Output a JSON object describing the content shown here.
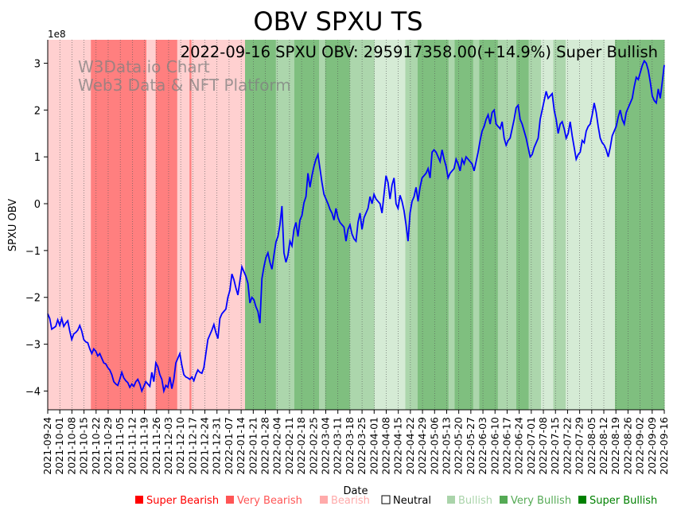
{
  "chart_data": {
    "type": "line",
    "title": "OBV SPXU TS",
    "annotation": "2022-09-16 SPXU OBV: 295917358.00(+14.9%) Super Bullish",
    "watermark_line1": "W3Data.io Chart",
    "watermark_line2": "Web3 Data & NFT Platform",
    "xlabel": "Date",
    "ylabel": "SPXU OBV",
    "y_multiplier": "1e8",
    "ylim": [
      -4.4,
      3.5
    ],
    "yticks": [
      -4,
      -3,
      -2,
      -1,
      0,
      1,
      2,
      3
    ],
    "xticks": [
      "2021-09-24",
      "2021-10-01",
      "2021-10-08",
      "2021-10-15",
      "2021-10-22",
      "2021-10-29",
      "2021-11-05",
      "2021-11-12",
      "2021-11-19",
      "2021-11-26",
      "2021-12-03",
      "2021-12-10",
      "2021-12-17",
      "2021-12-24",
      "2021-12-31",
      "2022-01-07",
      "2022-01-14",
      "2022-01-21",
      "2022-01-28",
      "2022-02-04",
      "2022-02-11",
      "2022-02-18",
      "2022-02-25",
      "2022-03-04",
      "2022-03-11",
      "2022-03-18",
      "2022-03-25",
      "2022-04-01",
      "2022-04-08",
      "2022-04-15",
      "2022-04-22",
      "2022-04-29",
      "2022-05-06",
      "2022-05-13",
      "2022-05-20",
      "2022-05-27",
      "2022-06-03",
      "2022-06-10",
      "2022-06-17",
      "2022-06-24",
      "2022-07-01",
      "2022-07-08",
      "2022-07-15",
      "2022-07-22",
      "2022-07-29",
      "2022-08-05",
      "2022-08-12",
      "2022-08-19",
      "2022-08-26",
      "2022-09-02",
      "2022-09-09",
      "2022-09-16"
    ],
    "line_color": "#0000ff",
    "series": [
      {
        "values": [
          -2.35,
          -2.45,
          -2.68,
          -2.65,
          -2.62,
          -2.48,
          -2.6,
          -2.45,
          -2.62,
          -2.55,
          -2.5,
          -2.72,
          -2.9,
          -2.78,
          -2.75,
          -2.7,
          -2.6,
          -2.72,
          -2.9,
          -2.95,
          -2.97,
          -3.1,
          -3.2,
          -3.1,
          -3.15,
          -3.25,
          -3.2,
          -3.3,
          -3.4,
          -3.42,
          -3.5,
          -3.55,
          -3.65,
          -3.8,
          -3.85,
          -3.88,
          -3.75,
          -3.6,
          -3.72,
          -3.78,
          -3.82,
          -3.92,
          -3.85,
          -3.9,
          -3.8,
          -3.75,
          -3.85,
          -4.0,
          -3.9,
          -3.8,
          -3.85,
          -3.9,
          -3.6,
          -3.8,
          -3.4,
          -3.48,
          -3.65,
          -3.75,
          -4.0,
          -3.88,
          -3.92,
          -3.7,
          -3.95,
          -3.75,
          -3.4,
          -3.3,
          -3.2,
          -3.45,
          -3.65,
          -3.7,
          -3.72,
          -3.75,
          -3.7,
          -3.78,
          -3.65,
          -3.55,
          -3.6,
          -3.62,
          -3.5,
          -3.2,
          -2.9,
          -2.8,
          -2.7,
          -2.58,
          -2.75,
          -2.88,
          -2.45,
          -2.35,
          -2.3,
          -2.25,
          -2.0,
          -1.85,
          -1.5,
          -1.62,
          -1.8,
          -1.95,
          -1.65,
          -1.35,
          -1.45,
          -1.55,
          -1.7,
          -2.12,
          -2.0,
          -2.05,
          -2.2,
          -2.3,
          -2.55,
          -1.6,
          -1.35,
          -1.15,
          -1.05,
          -1.25,
          -1.4,
          -1.1,
          -0.82,
          -0.7,
          -0.45,
          -0.05,
          -1.05,
          -1.25,
          -1.1,
          -0.8,
          -0.9,
          -0.55,
          -0.4,
          -0.7,
          -0.35,
          -0.25,
          0.02,
          0.15,
          0.65,
          0.35,
          0.6,
          0.8,
          0.95,
          1.05,
          0.75,
          0.45,
          0.2,
          0.1,
          0.0,
          -0.12,
          -0.2,
          -0.35,
          -0.1,
          -0.3,
          -0.4,
          -0.45,
          -0.5,
          -0.8,
          -0.55,
          -0.45,
          -0.65,
          -0.75,
          -0.8,
          -0.4,
          -0.2,
          -0.55,
          -0.3,
          -0.2,
          -0.1,
          0.15,
          0.0,
          0.2,
          0.1,
          0.05,
          0.0,
          -0.2,
          0.2,
          0.6,
          0.45,
          0.1,
          0.4,
          0.55,
          0.0,
          -0.1,
          0.18,
          0.05,
          -0.15,
          -0.45,
          -0.8,
          -0.2,
          0.05,
          0.15,
          0.35,
          0.05,
          0.35,
          0.55,
          0.6,
          0.65,
          0.75,
          0.55,
          1.1,
          1.15,
          1.1,
          1.0,
          0.9,
          1.15,
          0.95,
          0.8,
          0.55,
          0.65,
          0.7,
          0.75,
          0.95,
          0.85,
          0.7,
          0.95,
          0.85,
          1.0,
          0.95,
          0.9,
          0.85,
          0.7,
          0.9,
          1.1,
          1.35,
          1.55,
          1.65,
          1.8,
          1.9,
          1.7,
          1.95,
          2.0,
          1.7,
          1.65,
          1.6,
          1.75,
          1.4,
          1.25,
          1.35,
          1.4,
          1.6,
          1.8,
          2.05,
          2.1,
          1.8,
          1.7,
          1.55,
          1.4,
          1.2,
          1.0,
          1.05,
          1.2,
          1.3,
          1.4,
          1.8,
          2.0,
          2.2,
          2.4,
          2.25,
          2.3,
          2.35,
          2.0,
          1.8,
          1.5,
          1.7,
          1.75,
          1.6,
          1.4,
          1.5,
          1.75,
          1.45,
          1.2,
          0.95,
          1.05,
          1.1,
          1.35,
          1.3,
          1.55,
          1.65,
          1.7,
          1.9,
          2.15,
          1.95,
          1.65,
          1.4,
          1.3,
          1.25,
          1.15,
          1.0,
          1.2,
          1.45,
          1.55,
          1.65,
          1.85,
          2.0,
          1.8,
          1.7,
          1.95,
          2.05,
          2.15,
          2.25,
          2.5,
          2.7,
          2.65,
          2.8,
          2.95,
          3.05,
          3.0,
          2.85,
          2.6,
          2.3,
          2.2,
          2.15,
          2.45,
          2.25,
          2.6,
          2.96
        ]
      }
    ],
    "background_bands": [
      {
        "x0": 0.0,
        "x1": 0.07,
        "color": "#ffd0d0"
      },
      {
        "x0": 0.07,
        "x1": 0.16,
        "color": "#ff7f7f"
      },
      {
        "x0": 0.16,
        "x1": 0.175,
        "color": "#ffd0d0"
      },
      {
        "x0": 0.175,
        "x1": 0.21,
        "color": "#ff7f7f"
      },
      {
        "x0": 0.21,
        "x1": 0.23,
        "color": "#ffd0d0"
      },
      {
        "x0": 0.23,
        "x1": 0.233,
        "color": "#ff7f7f"
      },
      {
        "x0": 0.233,
        "x1": 0.32,
        "color": "#ffd0d0"
      },
      {
        "x0": 0.32,
        "x1": 0.37,
        "color": "#7fbf7f"
      },
      {
        "x0": 0.37,
        "x1": 0.4,
        "color": "#acd6ac"
      },
      {
        "x0": 0.4,
        "x1": 0.44,
        "color": "#7fbf7f"
      },
      {
        "x0": 0.44,
        "x1": 0.45,
        "color": "#acd6ac"
      },
      {
        "x0": 0.45,
        "x1": 0.49,
        "color": "#7fbf7f"
      },
      {
        "x0": 0.49,
        "x1": 0.53,
        "color": "#acd6ac"
      },
      {
        "x0": 0.53,
        "x1": 0.58,
        "color": "#d5ebd5"
      },
      {
        "x0": 0.58,
        "x1": 0.6,
        "color": "#acd6ac"
      },
      {
        "x0": 0.6,
        "x1": 0.65,
        "color": "#7fbf7f"
      },
      {
        "x0": 0.65,
        "x1": 0.66,
        "color": "#acd6ac"
      },
      {
        "x0": 0.66,
        "x1": 0.69,
        "color": "#7fbf7f"
      },
      {
        "x0": 0.69,
        "x1": 0.7,
        "color": "#acd6ac"
      },
      {
        "x0": 0.7,
        "x1": 0.73,
        "color": "#7fbf7f"
      },
      {
        "x0": 0.73,
        "x1": 0.76,
        "color": "#acd6ac"
      },
      {
        "x0": 0.76,
        "x1": 0.78,
        "color": "#7fbf7f"
      },
      {
        "x0": 0.78,
        "x1": 0.8,
        "color": "#acd6ac"
      },
      {
        "x0": 0.8,
        "x1": 0.82,
        "color": "#d5ebd5"
      },
      {
        "x0": 0.82,
        "x1": 0.84,
        "color": "#acd6ac"
      },
      {
        "x0": 0.84,
        "x1": 0.86,
        "color": "#d5ebd5"
      },
      {
        "x0": 0.86,
        "x1": 0.92,
        "color": "#d5ebd5"
      },
      {
        "x0": 0.92,
        "x1": 0.98,
        "color": "#7fbf7f"
      },
      {
        "x0": 0.98,
        "x1": 1.0,
        "color": "#7fbf7f"
      }
    ],
    "legend": [
      {
        "label": "Super Bearish",
        "color": "#ff0000"
      },
      {
        "label": "Very Bearish",
        "color": "#ff5555"
      },
      {
        "label": "Bearish",
        "color": "#ffaaaa"
      },
      {
        "label": "Neutral",
        "color": "#000000",
        "hollow": true
      },
      {
        "label": "Bullish",
        "color": "#aad4aa"
      },
      {
        "label": "Very Bullish",
        "color": "#55aa55"
      },
      {
        "label": "Super Bullish",
        "color": "#008000"
      }
    ]
  }
}
